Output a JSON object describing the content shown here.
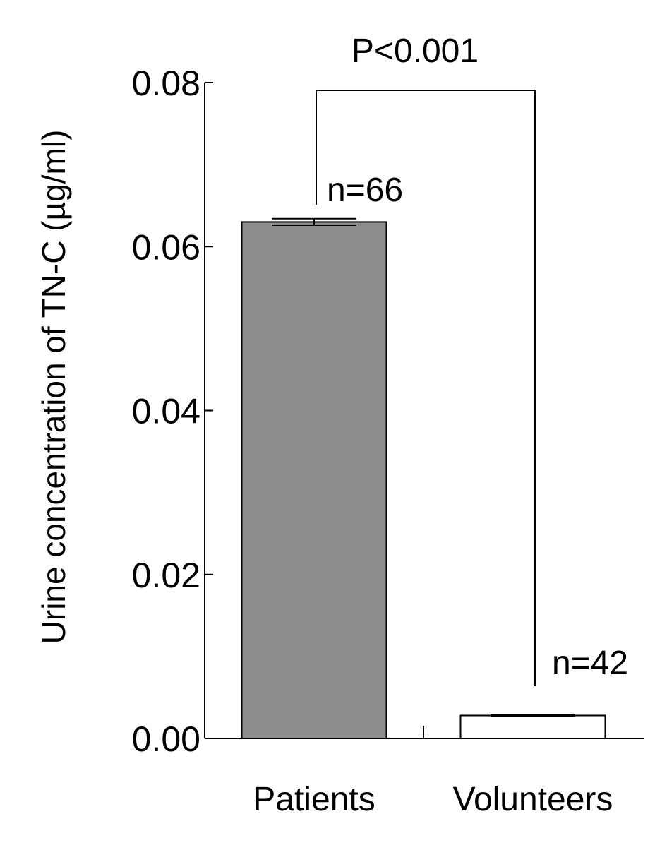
{
  "chart_data": {
    "type": "bar",
    "title": "",
    "ylabel": "Urine concentration of TN-C (µg/ml)",
    "xlabel": "",
    "ylim": [
      0,
      0.08
    ],
    "yticks": [
      "0.00",
      "0.02",
      "0.04",
      "0.06",
      "0.08"
    ],
    "categories": [
      "Patients",
      "Volunteers"
    ],
    "values": [
      0.063,
      0.0028
    ],
    "errors": [
      0.0004,
      0.0001
    ],
    "bar_colors": [
      "#8c8c8c",
      "#ffffff"
    ],
    "sample_sizes": [
      "n=66",
      "n=42"
    ],
    "significance": "P<0.001",
    "grid": false,
    "legend": "none"
  }
}
